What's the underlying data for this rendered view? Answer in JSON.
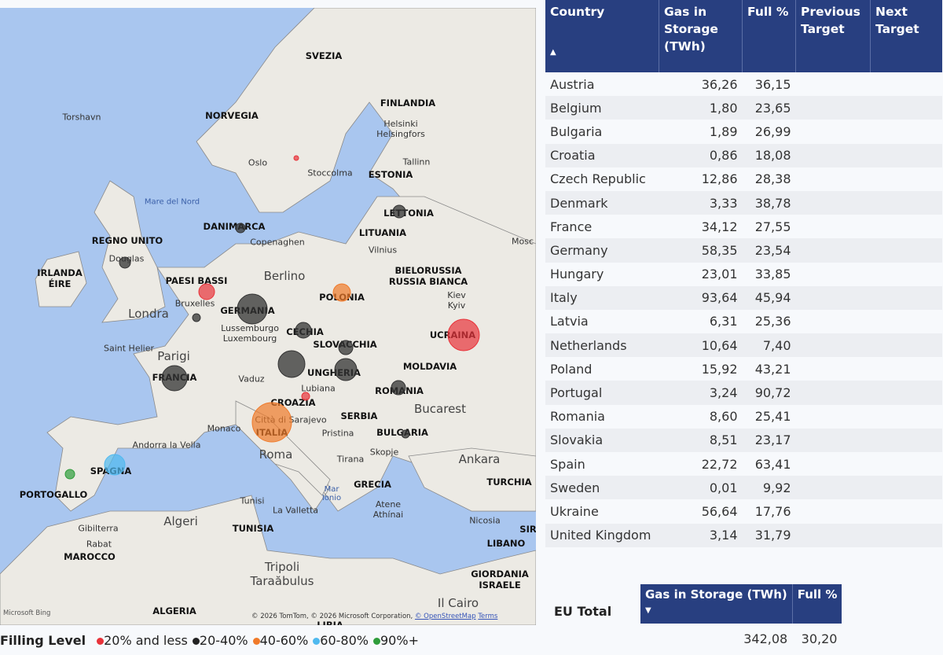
{
  "map": {
    "country_labels": [
      "SVEZIA",
      "NORVEGIA",
      "FINLANDIA",
      "ESTONIA",
      "LETTONIA",
      "LITUANIA",
      "DANIMARCA",
      "REGNO UNITO",
      "IRLANDA\nÉIRE",
      "PAESI BASSI",
      "GERMANIA",
      "POLONIA",
      "BIELORUSSIA\nRUSSIA BIANCA",
      "UCRAINA",
      "CECHIA",
      "SLOVACCHIA",
      "UNGHERIA",
      "MOLDAVIA",
      "ROMANIA",
      "FRANCIA",
      "CROAZIA",
      "SERBIA",
      "BULGARIA",
      "ITALIA",
      "SPAGNA",
      "PORTOGALLO",
      "GRECIA",
      "TURCHIA",
      "TUNISIA",
      "MAROCCO",
      "ALGERIA",
      "LIBANO",
      "GIORDANIA\nISRAELE",
      "SIR",
      "LIBIA"
    ],
    "city_labels": [
      "Torshavn",
      "Oslo",
      "Stoccolma",
      "Helsinki\nHelsingfors",
      "Tallinn",
      "Copenaghen",
      "Vilnius",
      "Douglas",
      "Berlino",
      "Bruxelles",
      "Lussemburgo\nLuxembourg",
      "Londra",
      "Parigi",
      "Saint Helier",
      "Kiev\nKyiv",
      "Vaduz",
      "Lubiana",
      "Bucarest",
      "Città di Sarajevo",
      "Monaco",
      "Andorra la Vella",
      "Roma",
      "Pristina",
      "Skopje",
      "Tirana",
      "Ankara",
      "Atene\nAthínai",
      "Tunisi",
      "La Valletta",
      "Algeri",
      "Gibilterra",
      "Rabat",
      "Nicosia",
      "Tripoli\nTaraăbulus",
      "Il Cairo",
      "Mosc"
    ],
    "sea_labels": [
      "Mare del Nord",
      "Mar\nIonio"
    ],
    "attribution": "© 2026 TomTom, © 2026 Microsoft Corporation, ",
    "attribution_link": "© OpenStreetMap",
    "terms": "Terms",
    "bing": "Microsoft Bing"
  },
  "legend": {
    "title": "Filling Level",
    "items": [
      {
        "label": "20% and less",
        "color": "#e8333a"
      },
      {
        "label": "20-40%",
        "color": "#222222"
      },
      {
        "label": "40-60%",
        "color": "#f07a2a"
      },
      {
        "label": "60-80%",
        "color": "#4fb9ef"
      },
      {
        "label": "90%+",
        "color": "#2e9c3a"
      }
    ]
  },
  "table": {
    "headers": [
      "Country",
      "Gas in Storage (TWh)",
      "Full %",
      "Previous Target",
      "Next Target"
    ],
    "sort_icon": "triangle-up",
    "rows": [
      [
        "Austria",
        "36,26",
        "36,15"
      ],
      [
        "Belgium",
        "1,80",
        "23,65"
      ],
      [
        "Bulgaria",
        "1,89",
        "26,99"
      ],
      [
        "Croatia",
        "0,86",
        "18,08"
      ],
      [
        "Czech Republic",
        "12,86",
        "28,38"
      ],
      [
        "Denmark",
        "3,33",
        "38,78"
      ],
      [
        "France",
        "34,12",
        "27,55"
      ],
      [
        "Germany",
        "58,35",
        "23,54"
      ],
      [
        "Hungary",
        "23,01",
        "33,85"
      ],
      [
        "Italy",
        "93,64",
        "45,94"
      ],
      [
        "Latvia",
        "6,31",
        "25,36"
      ],
      [
        "Netherlands",
        "10,64",
        "7,40"
      ],
      [
        "Poland",
        "15,92",
        "43,21"
      ],
      [
        "Portugal",
        "3,24",
        "90,72"
      ],
      [
        "Romania",
        "8,60",
        "25,41"
      ],
      [
        "Slovakia",
        "8,51",
        "23,17"
      ],
      [
        "Spain",
        "22,72",
        "63,41"
      ],
      [
        "Sweden",
        "0,01",
        "9,92"
      ],
      [
        "Ukraine",
        "56,64",
        "17,76"
      ],
      [
        "United Kingdom",
        "3,14",
        "31,79"
      ]
    ]
  },
  "eu_total": {
    "label": "EU Total",
    "headers": [
      "Gas in Storage (TWh)",
      "Full %"
    ],
    "sort_icon": "triangle-down",
    "values": [
      "342,08",
      "30,20"
    ]
  },
  "colors": {
    "header": "#283f80",
    "sea": "#a9c6ef",
    "land": "#eeeeea"
  }
}
